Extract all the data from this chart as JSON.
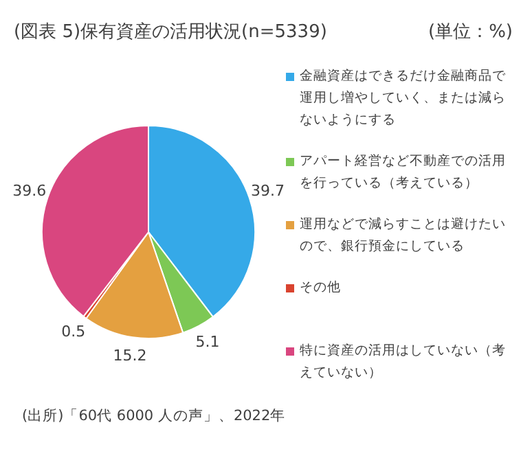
{
  "chart_data": {
    "type": "pie",
    "title": "(図表 5)保有資産の活用状況(n=5339)",
    "subtitle": "(単位：%)",
    "categories": [
      "金融資産はできるだけ金融商品で運用し増やしていく、または減らないようにする",
      "アパート経営など不動産での活用を行っている（考えている）",
      "運用などで減らすことは避けたいので、銀行預金にしている",
      "その他",
      "特に資産の活用はしていない（考えていない）"
    ],
    "values": [
      39.7,
      5.1,
      15.2,
      0.5,
      39.6
    ],
    "colors": [
      "#35a9e8",
      "#7dc855",
      "#e4a040",
      "#d9432f",
      "#d9467f"
    ],
    "data_labels": true,
    "legend": "right",
    "annotations": [
      "(出所)「60代 6000 人の声」、2022年"
    ]
  }
}
